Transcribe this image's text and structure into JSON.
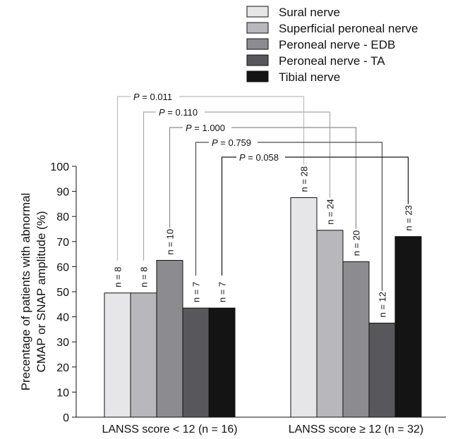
{
  "chart_data": {
    "type": "bar",
    "ylabel": "Percentage of patients with abnormal CMAP or SNAP amplitude (%)",
    "ylabel_lines": [
      "Precentage of patients with abnormal",
      "CMAP or SNAP amplitude (%)"
    ],
    "ylim": [
      0,
      100
    ],
    "yticks": [
      0,
      10,
      20,
      30,
      40,
      50,
      60,
      70,
      80,
      90,
      100
    ],
    "categories": [
      "LANSS score < 12 (n = 16)",
      "LANSS score ≥ 12 (n = 32)"
    ],
    "legend_position": "top-right",
    "grid": false,
    "series": [
      {
        "name": "Sural nerve",
        "color": "#e6e6e8",
        "values": [
          49.5,
          87.5
        ],
        "n_labels": [
          "n = 8",
          "n = 28"
        ]
      },
      {
        "name": "Superficial peroneal nerve",
        "color": "#b8b8bc",
        "values": [
          49.5,
          74.5
        ],
        "n_labels": [
          "n = 8",
          "n = 24"
        ]
      },
      {
        "name": "Peroneal nerve - EDB",
        "color": "#8c8c90",
        "values": [
          62.5,
          62.0
        ],
        "n_labels": [
          "n = 10",
          "n = 20"
        ]
      },
      {
        "name": "Peroneal nerve - TA",
        "color": "#58585c",
        "values": [
          43.5,
          37.5
        ],
        "n_labels": [
          "n = 7",
          "n = 12"
        ]
      },
      {
        "name": "Tibial nerve",
        "color": "#141414",
        "values": [
          43.5,
          72.0
        ],
        "n_labels": [
          "n = 7",
          "n = 23"
        ]
      }
    ],
    "annotations": [
      {
        "p_symbol": "P",
        "value": "= 0.011",
        "series": 0,
        "color": "#bdbdbd"
      },
      {
        "p_symbol": "P",
        "value": "= 0.110",
        "series": 1,
        "color": "#a8a8a8"
      },
      {
        "p_symbol": "P",
        "value": "= 1.000",
        "series": 2,
        "color": "#8c8c8c"
      },
      {
        "p_symbol": "P",
        "value": "= 0.759",
        "series": 3,
        "color": "#4a4a4a"
      },
      {
        "p_symbol": "P",
        "value": "= 0.058",
        "series": 4,
        "color": "#141414"
      }
    ]
  }
}
